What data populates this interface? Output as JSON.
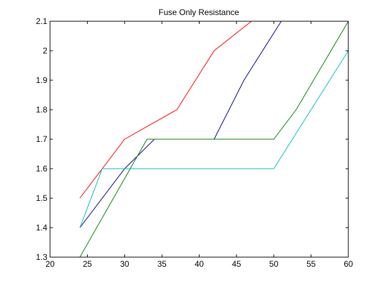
{
  "chart_data": {
    "type": "line",
    "title": "Fuse Only Resistance",
    "xlabel": "",
    "ylabel": "",
    "xlim": [
      20,
      60
    ],
    "ylim": [
      1.3,
      2.1
    ],
    "x_ticks": [
      20,
      25,
      30,
      35,
      40,
      45,
      50,
      55,
      60
    ],
    "y_ticks": [
      1.3,
      1.4,
      1.5,
      1.6,
      1.7,
      1.8,
      1.9,
      2,
      2.1
    ],
    "x_tick_labels": [
      "20",
      "25",
      "30",
      "35",
      "40",
      "45",
      "50",
      "55",
      "60"
    ],
    "y_tick_labels": [
      "1.3",
      "1.4",
      "1.5",
      "1.6",
      "1.7",
      "1.8",
      "1.9",
      "2",
      "2.1"
    ],
    "grid": false,
    "legend": "none",
    "series": [
      {
        "color": "#ff0000",
        "x": [
          24,
          30,
          37,
          42,
          47
        ],
        "y": [
          1.5,
          1.7,
          1.8,
          2.0,
          2.1
        ]
      },
      {
        "color": "#00007f",
        "x": [
          24,
          30,
          34,
          42,
          46,
          51
        ],
        "y": [
          1.4,
          1.6,
          1.7,
          1.7,
          1.9,
          2.1
        ]
      },
      {
        "color": "#007f00",
        "x": [
          24,
          33,
          50,
          53,
          60
        ],
        "y": [
          1.3,
          1.7,
          1.7,
          1.8,
          2.1
        ]
      },
      {
        "color": "#00bfbf",
        "x": [
          24,
          27,
          50,
          60
        ],
        "y": [
          1.4,
          1.6,
          1.6,
          2.0
        ]
      }
    ]
  }
}
